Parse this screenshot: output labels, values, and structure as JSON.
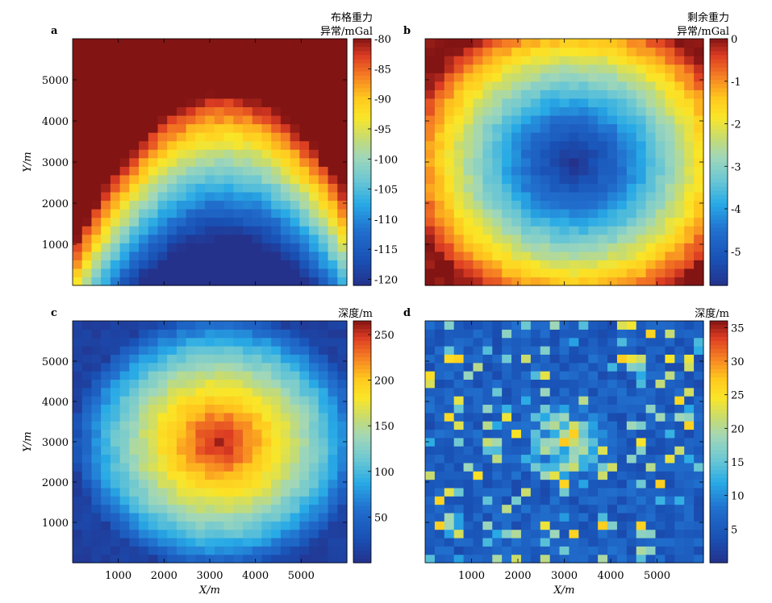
{
  "chart_data": [
    {
      "type": "heatmap",
      "panel_label": "a",
      "field": "bouguer",
      "colorbar": {
        "title_line1": "布格重力",
        "title_line2": "异常/mGal",
        "min": -121,
        "max": -80,
        "ticks": [
          "-80",
          "-85",
          "-90",
          "-95",
          "-100",
          "-105",
          "-110",
          "-115",
          "-120"
        ],
        "tick_values": [
          -80,
          -85,
          -90,
          -95,
          -100,
          -105,
          -110,
          -115,
          -120
        ]
      },
      "xlim": [
        0,
        6000
      ],
      "ylim": [
        0,
        6000
      ],
      "ylabel": "Y/m",
      "xlabel": "",
      "yticks": [
        "5000",
        "4000",
        "3000",
        "2000",
        "1000"
      ],
      "ytick_values": [
        5000,
        4000,
        3000,
        2000,
        1000
      ],
      "xticks": [],
      "xtick_values": []
    },
    {
      "type": "heatmap",
      "panel_label": "b",
      "field": "residual",
      "colorbar": {
        "title_line1": "剩余重力",
        "title_line2": "异常/mGal",
        "min": -5.8,
        "max": 0,
        "ticks": [
          "0",
          "-1",
          "-2",
          "-3",
          "-4",
          "-5"
        ],
        "tick_values": [
          0,
          -1,
          -2,
          -3,
          -4,
          -5
        ]
      },
      "xlim": [
        0,
        6000
      ],
      "ylim": [
        0,
        6000
      ],
      "ylabel": "",
      "xlabel": "",
      "yticks": [],
      "ytick_values": [],
      "xticks": [],
      "xtick_values": []
    },
    {
      "type": "heatmap",
      "panel_label": "c",
      "field": "depth_smooth",
      "colorbar": {
        "title_line1": "",
        "title_line2": "深度/m",
        "min": 0,
        "max": 265,
        "ticks": [
          "250",
          "200",
          "150",
          "100",
          "50"
        ],
        "tick_values": [
          250,
          200,
          150,
          100,
          50
        ]
      },
      "xlim": [
        0,
        6000
      ],
      "ylim": [
        0,
        6000
      ],
      "ylabel": "Y/m",
      "xlabel": "X/m",
      "yticks": [
        "5000",
        "4000",
        "3000",
        "2000",
        "1000"
      ],
      "ytick_values": [
        5000,
        4000,
        3000,
        2000,
        1000
      ],
      "xticks": [
        "1000",
        "2000",
        "3000",
        "4000",
        "5000"
      ],
      "xtick_values": [
        1000,
        2000,
        3000,
        4000,
        5000
      ]
    },
    {
      "type": "heatmap",
      "panel_label": "d",
      "field": "depth_noisy",
      "colorbar": {
        "title_line1": "",
        "title_line2": "深度/m",
        "min": 0,
        "max": 36,
        "ticks": [
          "35",
          "30",
          "25",
          "20",
          "15",
          "10",
          "5"
        ],
        "tick_values": [
          35,
          30,
          25,
          20,
          15,
          10,
          5
        ]
      },
      "xlim": [
        0,
        6000
      ],
      "ylim": [
        0,
        6000
      ],
      "ylabel": "",
      "xlabel": "X/m",
      "yticks": [],
      "ytick_values": [],
      "xticks": [
        "1000",
        "2000",
        "3000",
        "4000",
        "5000"
      ],
      "xtick_values": [
        1000,
        2000,
        3000,
        4000,
        5000
      ]
    }
  ]
}
